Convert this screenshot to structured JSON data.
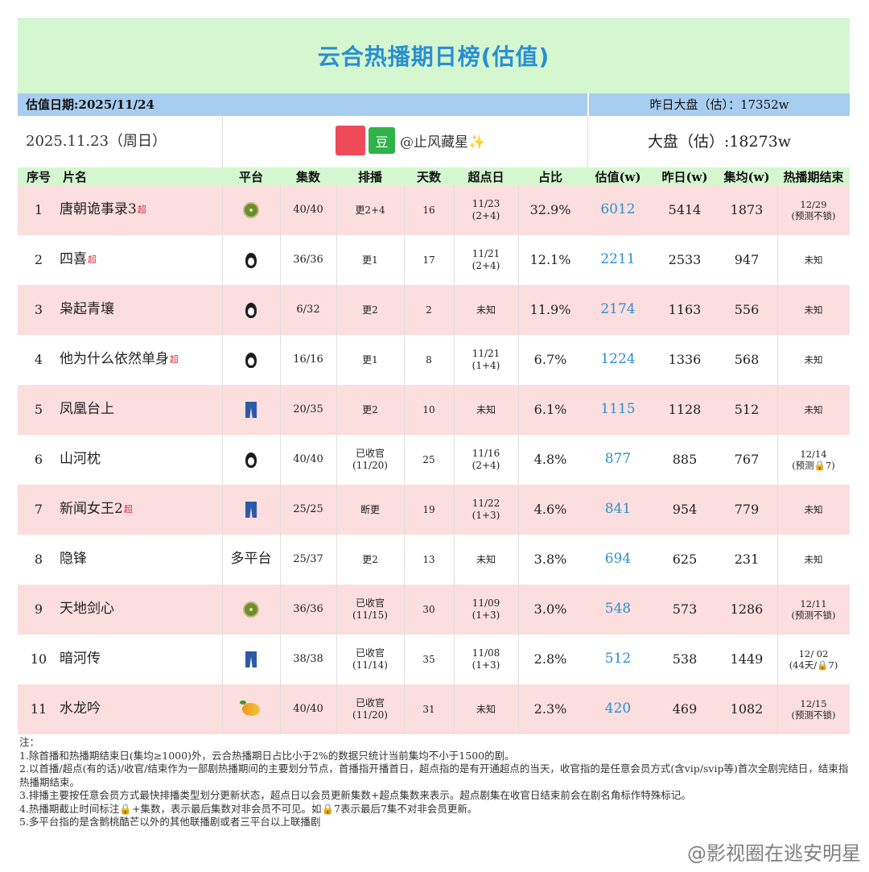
{
  "title": "云合热播期日榜(估值)",
  "valuation_date": "估值日期:2025/11/24",
  "yesterday_market": "昨日大盘（估）：17352w",
  "current_date": "2025.11.23（周日）",
  "source_badge": "豆",
  "source_handle": "@止风藏星✨",
  "market_today": "大盘（估）:18273w",
  "headers": [
    "序号",
    "片名",
    "平台",
    "集数",
    "排播",
    "天数",
    "超点日",
    "占比",
    "估值(w)",
    "昨日(w)",
    "集均(w)",
    "热播期结束"
  ],
  "super_mark": "超",
  "rows": [
    {
      "rank": "1",
      "name": "唐朝诡事录3",
      "super": true,
      "platform_icon": "kiwi-icon",
      "platform_text": "",
      "episodes": "40/40",
      "schedule": [
        "更2+4"
      ],
      "days": "16",
      "super_day": [
        "11/23",
        "(2+4)"
      ],
      "share": "32.9%",
      "value": "6012",
      "yesterday": "5414",
      "avg": "1873",
      "end": [
        "12/29",
        "(预测不锁)"
      ]
    },
    {
      "rank": "2",
      "name": "四喜",
      "super": true,
      "platform_icon": "penguin-icon",
      "platform_text": "",
      "episodes": "36/36",
      "schedule": [
        "更1"
      ],
      "days": "17",
      "super_day": [
        "11/21",
        "(2+4)"
      ],
      "share": "12.1%",
      "value": "2211",
      "yesterday": "2533",
      "avg": "947",
      "end": [
        "未知"
      ]
    },
    {
      "rank": "3",
      "name": "枭起青壤",
      "super": false,
      "platform_icon": "penguin-icon",
      "platform_text": "",
      "episodes": "6/32",
      "schedule": [
        "更2"
      ],
      "days": "2",
      "super_day": [
        "未知"
      ],
      "share": "11.9%",
      "value": "2174",
      "yesterday": "1163",
      "avg": "556",
      "end": [
        "未知"
      ]
    },
    {
      "rank": "4",
      "name": "他为什么依然单身",
      "super": true,
      "platform_icon": "penguin-icon",
      "platform_text": "",
      "episodes": "16/16",
      "schedule": [
        "更1"
      ],
      "days": "8",
      "super_day": [
        "11/21",
        "(1+4)"
      ],
      "share": "6.7%",
      "value": "1224",
      "yesterday": "1336",
      "avg": "568",
      "end": [
        "未知"
      ]
    },
    {
      "rank": "5",
      "name": "凤凰台上",
      "super": false,
      "platform_icon": "jeans-icon",
      "platform_text": "",
      "episodes": "20/35",
      "schedule": [
        "更2"
      ],
      "days": "10",
      "super_day": [
        "未知"
      ],
      "share": "6.1%",
      "value": "1115",
      "yesterday": "1128",
      "avg": "512",
      "end": [
        "未知"
      ]
    },
    {
      "rank": "6",
      "name": "山河枕",
      "super": false,
      "platform_icon": "penguin-icon",
      "platform_text": "",
      "episodes": "40/40",
      "schedule": [
        "已收官",
        "(11/20)"
      ],
      "days": "25",
      "super_day": [
        "11/16",
        "(2+4)"
      ],
      "share": "4.8%",
      "value": "877",
      "yesterday": "885",
      "avg": "767",
      "end": [
        "12/14",
        "(预测🔒7)"
      ]
    },
    {
      "rank": "7",
      "name": "新闻女王2",
      "super": true,
      "platform_icon": "jeans-icon",
      "platform_text": "",
      "episodes": "25/25",
      "schedule": [
        "断更"
      ],
      "days": "19",
      "super_day": [
        "11/22",
        "(1+3)"
      ],
      "share": "4.6%",
      "value": "841",
      "yesterday": "954",
      "avg": "779",
      "end": [
        "未知"
      ]
    },
    {
      "rank": "8",
      "name": "隐锋",
      "super": false,
      "platform_icon": "",
      "platform_text": "多平台",
      "episodes": "25/37",
      "schedule": [
        "更2"
      ],
      "days": "13",
      "super_day": [
        "未知"
      ],
      "share": "3.8%",
      "value": "694",
      "yesterday": "625",
      "avg": "231",
      "end": [
        "未知"
      ]
    },
    {
      "rank": "9",
      "name": "天地剑心",
      "super": false,
      "platform_icon": "kiwi-icon",
      "platform_text": "",
      "episodes": "36/36",
      "schedule": [
        "已收官",
        "(11/15)"
      ],
      "days": "30",
      "super_day": [
        "11/09",
        "(1+3)"
      ],
      "share": "3.0%",
      "value": "548",
      "yesterday": "573",
      "avg": "1286",
      "end": [
        "12/11",
        "(预测不锁)"
      ]
    },
    {
      "rank": "10",
      "name": "暗河传",
      "super": false,
      "platform_icon": "jeans-icon",
      "platform_text": "",
      "episodes": "38/38",
      "schedule": [
        "已收官",
        "(11/14)"
      ],
      "days": "35",
      "super_day": [
        "11/08",
        "(1+3)"
      ],
      "share": "2.8%",
      "value": "512",
      "yesterday": "538",
      "avg": "1449",
      "end": [
        "12/ 02",
        "(44天/🔒7)"
      ]
    },
    {
      "rank": "11",
      "name": "水龙吟",
      "super": false,
      "platform_icon": "mango-icon",
      "platform_text": "",
      "episodes": "40/40",
      "schedule": [
        "已收官",
        "(11/20)"
      ],
      "days": "31",
      "super_day": [
        "未知"
      ],
      "share": "2.3%",
      "value": "420",
      "yesterday": "469",
      "avg": "1082",
      "end": [
        "12/15",
        "(预测不锁)"
      ]
    }
  ],
  "notes": [
    "注：",
    "1.除首播和热播期结束日(集均≥1000)外，云合热播期日占比小于2%的数据只统计当前集均不小于1500的剧。",
    "2.以首播/超点(有的话)/收官/结束作为一部剧热播期间的主要划分节点，首播指开播首日，超点指的是有开通超点的当天，收官指的是任意会员方式(含vip/svip等)首次全剧完结日，结束指热播期结束。",
    "3.排播主要按任意会员方式最快排播类型划分更新状态，超点日以会员更新集数+超点集数来表示。超点剧集在收官日结束前会在剧名角标作特殊标记。",
    "4.热播期截止时间标注🔒+集数，表示最后集数对非会员不可见。如🔒7表示最后7集不对非会员更新。",
    "5.多平台指的是含鹅桃酷芒以外的其他联播剧或者三平台以上联播剧"
  ],
  "watermark": "@影视圈在逃安明星",
  "colors": {
    "title_bg": "#d4f7d0",
    "title_text": "#2a8fd0",
    "date_bar_bg": "#a7cdf0",
    "pink_row": "#fcdede",
    "value_text": "#2a8fd0",
    "super_mark": "#d03040"
  }
}
